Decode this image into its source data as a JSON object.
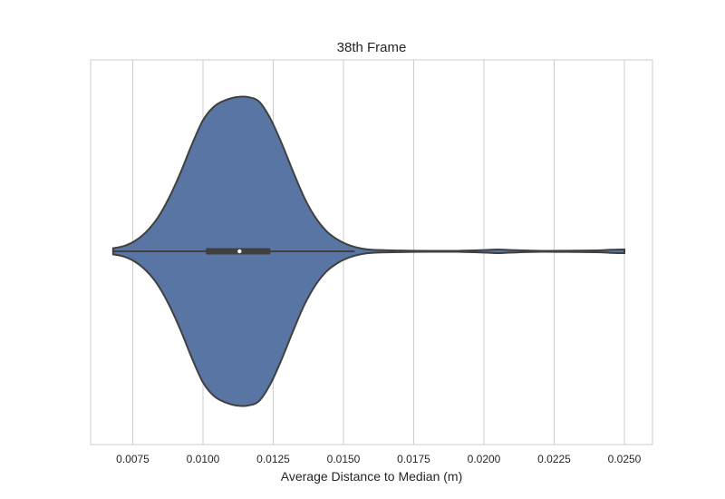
{
  "chart_data": {
    "type": "violin",
    "title": "38th Frame",
    "xlabel": "Average Distance to Median (m)",
    "ylabel": "",
    "xlim": [
      0.006,
      0.026
    ],
    "grid": true,
    "xticks": [
      0.0075,
      0.01,
      0.0125,
      0.015,
      0.0175,
      0.02,
      0.0225,
      0.025
    ],
    "xtick_labels": [
      "0.0075",
      "0.0100",
      "0.0125",
      "0.0150",
      "0.0175",
      "0.0200",
      "0.0225",
      "0.0250"
    ],
    "fill_color": "#5875a4",
    "line_color": "#404040",
    "density": [
      [
        0.0068,
        0.02
      ],
      [
        0.0072,
        0.035
      ],
      [
        0.0076,
        0.07
      ],
      [
        0.008,
        0.13
      ],
      [
        0.0084,
        0.22
      ],
      [
        0.0088,
        0.35
      ],
      [
        0.0092,
        0.51
      ],
      [
        0.0096,
        0.69
      ],
      [
        0.01,
        0.85
      ],
      [
        0.0104,
        0.94
      ],
      [
        0.0108,
        0.98
      ],
      [
        0.0112,
        1.0
      ],
      [
        0.0116,
        1.0
      ],
      [
        0.012,
        0.97
      ],
      [
        0.0124,
        0.86
      ],
      [
        0.0128,
        0.7
      ],
      [
        0.0132,
        0.52
      ],
      [
        0.0136,
        0.35
      ],
      [
        0.014,
        0.22
      ],
      [
        0.0144,
        0.13
      ],
      [
        0.0148,
        0.075
      ],
      [
        0.0152,
        0.04
      ],
      [
        0.0156,
        0.02
      ],
      [
        0.016,
        0.01
      ],
      [
        0.017,
        0.005
      ],
      [
        0.018,
        0.003
      ],
      [
        0.019,
        0.003
      ],
      [
        0.02,
        0.008
      ],
      [
        0.0205,
        0.012
      ],
      [
        0.021,
        0.008
      ],
      [
        0.022,
        0.003
      ],
      [
        0.023,
        0.004
      ],
      [
        0.024,
        0.006
      ],
      [
        0.0245,
        0.01
      ],
      [
        0.025,
        0.012
      ]
    ],
    "stats": {
      "min": 0.0068,
      "q1": 0.0101,
      "median": 0.0113,
      "q3": 0.0124,
      "whisker_high": 0.0154,
      "max": 0.025
    }
  }
}
